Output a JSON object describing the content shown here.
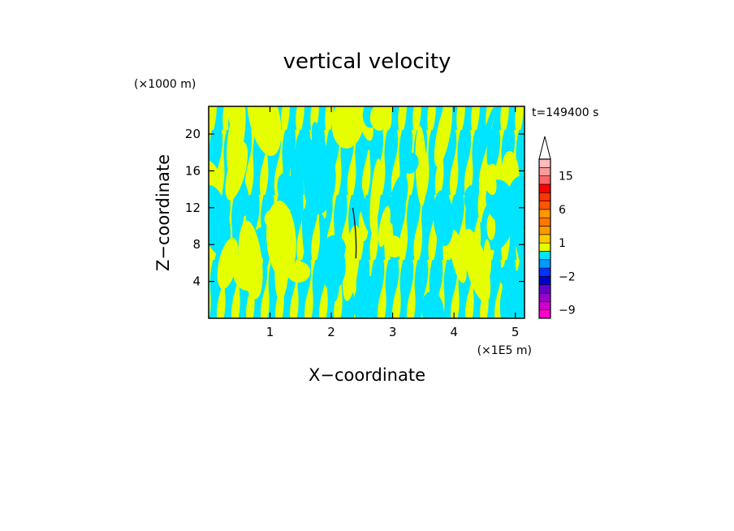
{
  "chart_data": {
    "type": "heatmap",
    "title": "vertical velocity",
    "xlabel": "X−coordinate",
    "ylabel": "Z−coordinate",
    "x_unit": "(×1E5 m)",
    "y_unit": "(×1000 m)",
    "time_label": "t=149400 s",
    "xlim": [
      0,
      5.15
    ],
    "ylim": [
      0,
      23
    ],
    "x_ticks": [
      1,
      2,
      3,
      4,
      5
    ],
    "y_ticks": [
      4,
      8,
      12,
      16,
      20
    ],
    "field_colors": {
      "upward_weak": "#e6ff00",
      "downward_weak": "#00e5ff"
    },
    "colorbar": {
      "min": -11,
      "max": 25,
      "bounds": [
        -11,
        -9,
        -7,
        -5,
        -3,
        -2,
        -1,
        0,
        0.5,
        1,
        2,
        3,
        4,
        6,
        8,
        10,
        12,
        15,
        20,
        25
      ],
      "colors": [
        "#ff00cc",
        "#cc00cc",
        "#9900cc",
        "#6600cc",
        "#0000cc",
        "#0033ff",
        "#0099ff",
        "#00e5ff",
        "#e6ff00",
        "#ffcc00",
        "#ff9900",
        "#ff7700",
        "#ff9900",
        "#ff5500",
        "#ff3300",
        "#ff0000",
        "#ff6666",
        "#ff9999",
        "#ffbbbb"
      ],
      "labeled_values": [
        -9,
        -2,
        1,
        6,
        15
      ],
      "labels": [
        "−9",
        "−2",
        "1",
        "6",
        "15"
      ]
    }
  }
}
